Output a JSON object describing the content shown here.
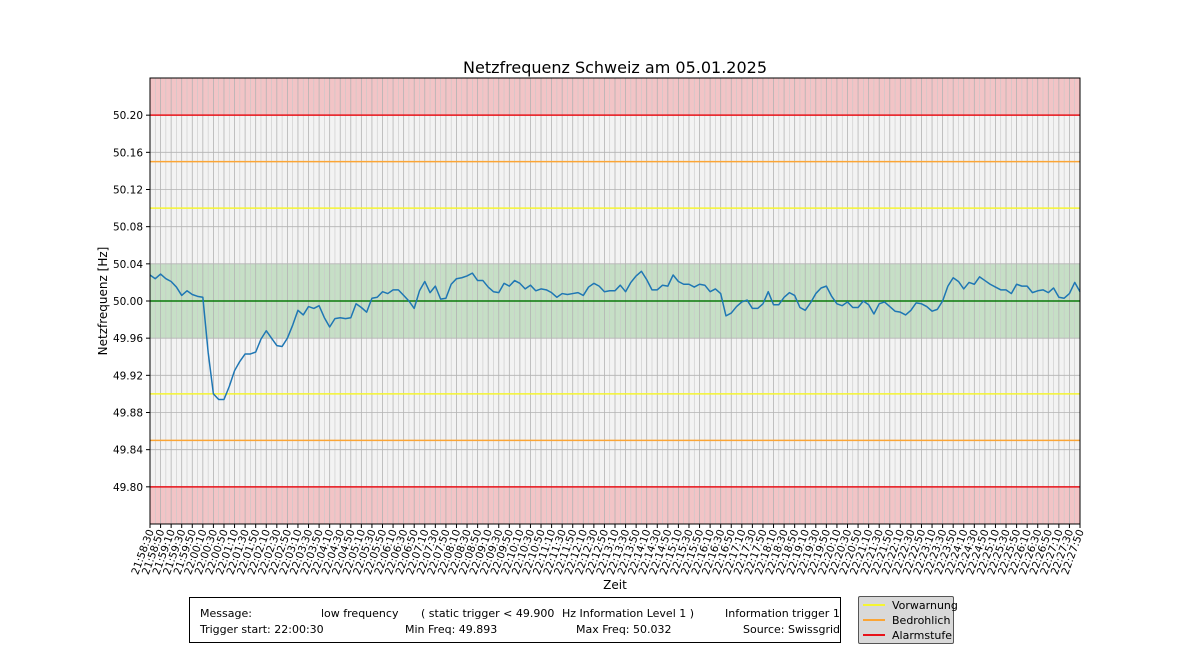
{
  "chart_data": {
    "type": "line",
    "title": "Netzfrequenz Schweiz am 05.01.2025",
    "xlabel": "Zeit",
    "ylabel": "Netzfrequenz [Hz]",
    "ylim": [
      49.76,
      50.24
    ],
    "yticks": [
      "49.80",
      "49.84",
      "49.88",
      "49.92",
      "49.96",
      "50.00",
      "50.04",
      "50.08",
      "50.12",
      "50.16",
      "50.20"
    ],
    "grid": true,
    "xticks": [
      "21:58:30",
      "21:58:50",
      "21:59:10",
      "21:59:30",
      "21:59:50",
      "22:00:10",
      "22:00:30",
      "22:00:50",
      "22:01:10",
      "22:01:30",
      "22:01:50",
      "22:02:10",
      "22:02:30",
      "22:02:50",
      "22:03:10",
      "22:03:30",
      "22:03:50",
      "22:04:10",
      "22:04:30",
      "22:04:50",
      "22:05:10",
      "22:05:30",
      "22:05:50",
      "22:06:10",
      "22:06:30",
      "22:06:50",
      "22:07:10",
      "22:07:30",
      "22:07:50",
      "22:08:10",
      "22:08:30",
      "22:08:50",
      "22:09:10",
      "22:09:30",
      "22:09:50",
      "22:10:10",
      "22:10:30",
      "22:10:50",
      "22:11:10",
      "22:11:30",
      "22:11:50",
      "22:12:10",
      "22:12:30",
      "22:12:50",
      "22:13:10",
      "22:13:30",
      "22:13:50",
      "22:14:10",
      "22:14:30",
      "22:14:50",
      "22:15:10",
      "22:15:30",
      "22:15:50",
      "22:16:10",
      "22:16:30",
      "22:16:50",
      "22:17:10",
      "22:17:30",
      "22:17:50",
      "22:18:10",
      "22:18:30",
      "22:18:50",
      "22:19:10",
      "22:19:30",
      "22:19:50",
      "22:20:10",
      "22:20:30",
      "22:20:50",
      "22:21:10",
      "22:21:30",
      "22:21:50",
      "22:22:10",
      "22:22:30",
      "22:22:50",
      "22:23:10",
      "22:23:30",
      "22:23:50",
      "22:24:10",
      "22:24:30",
      "22:24:50",
      "22:25:10",
      "22:25:30",
      "22:25:50",
      "22:26:10",
      "22:26:30",
      "22:26:50",
      "22:27:10",
      "22:27:30",
      "22:27:50"
    ],
    "bands": [
      {
        "from": 49.76,
        "to": 49.8,
        "color": "#f2c4c6"
      },
      {
        "from": 49.96,
        "to": 50.04,
        "color": "#c6dfc6"
      },
      {
        "from": 50.2,
        "to": 50.24,
        "color": "#f2c4c6"
      }
    ],
    "reference_lines": [
      {
        "y": 50.2,
        "color": "#e8131a"
      },
      {
        "y": 50.15,
        "color": "#fba535"
      },
      {
        "y": 50.1,
        "color": "#f5f531"
      },
      {
        "y": 50.0,
        "color": "#0a7a0a"
      },
      {
        "y": 49.9,
        "color": "#f5f531"
      },
      {
        "y": 49.85,
        "color": "#fba535"
      },
      {
        "y": 49.8,
        "color": "#e8131a"
      }
    ],
    "series": [
      {
        "color": "#1f77b4",
        "values": [
          50.028,
          50.024,
          50.029,
          50.024,
          50.021,
          50.015,
          50.006,
          50.011,
          50.007,
          50.005,
          50.004,
          49.945,
          49.9,
          49.894,
          49.894,
          49.908,
          49.925,
          49.935,
          49.943,
          49.943,
          49.945,
          49.959,
          49.968,
          49.96,
          49.952,
          49.951,
          49.96,
          49.974,
          49.99,
          49.985,
          49.994,
          49.992,
          49.995,
          49.982,
          49.972,
          49.981,
          49.982,
          49.981,
          49.982,
          49.997,
          49.993,
          49.988,
          50.003,
          50.004,
          50.01,
          50.008,
          50.012,
          50.012,
          50.006,
          50.0,
          49.992,
          50.011,
          50.021,
          50.009,
          50.016,
          50.002,
          50.003,
          50.018,
          50.024,
          50.025,
          50.027,
          50.03,
          50.022,
          50.022,
          50.015,
          50.01,
          50.009,
          50.019,
          50.016,
          50.022,
          50.019,
          50.013,
          50.017,
          50.011,
          50.013,
          50.012,
          50.009,
          50.004,
          50.008,
          50.007,
          50.008,
          50.009,
          50.006,
          50.015,
          50.019,
          50.016,
          50.01,
          50.011,
          50.011,
          50.017,
          50.01,
          50.02,
          50.027,
          50.032,
          50.023,
          50.012,
          50.012,
          50.017,
          50.016,
          50.028,
          50.021,
          50.018,
          50.018,
          50.015,
          50.018,
          50.017,
          50.01,
          50.013,
          50.008,
          49.984,
          49.987,
          49.994,
          49.999,
          50.001,
          49.992,
          49.992,
          49.997,
          50.01,
          49.996,
          49.996,
          50.004,
          50.009,
          50.006,
          49.993,
          49.99,
          49.998,
          50.008,
          50.014,
          50.016,
          50.005,
          49.997,
          49.995,
          49.999,
          49.993,
          49.993,
          50.0,
          49.996,
          49.986,
          49.997,
          49.999,
          49.994,
          49.989,
          49.988,
          49.985,
          49.99,
          49.998,
          49.997,
          49.994,
          49.989,
          49.991,
          50.0,
          50.016,
          50.025,
          50.021,
          50.013,
          50.02,
          50.018,
          50.026,
          50.022,
          50.018,
          50.015,
          50.012,
          50.012,
          50.008,
          50.018,
          50.016,
          50.016,
          50.009,
          50.011,
          50.012,
          50.009,
          50.014,
          50.004,
          50.003,
          50.008,
          50.02,
          50.01
        ]
      }
    ],
    "legend_placement": "lower-right",
    "legend": [
      {
        "label": "Vorwarnung",
        "color": "#f5f531"
      },
      {
        "label": "Bedrohlich",
        "color": "#fba535"
      },
      {
        "label": "Alarmstufe",
        "color": "#e8131a"
      }
    ]
  },
  "info": {
    "message_label": "Message:",
    "message_value": "low frequency",
    "static_trigger": "( static trigger < 49.900",
    "hz_info": "Hz Information Level 1 )",
    "info_trigger": "Information trigger 1",
    "trigger_start": "Trigger start: 22:00:30",
    "min_freq": "Min Freq: 49.893",
    "max_freq": "Max Freq: 50.032",
    "source": "Source: Swissgrid"
  }
}
